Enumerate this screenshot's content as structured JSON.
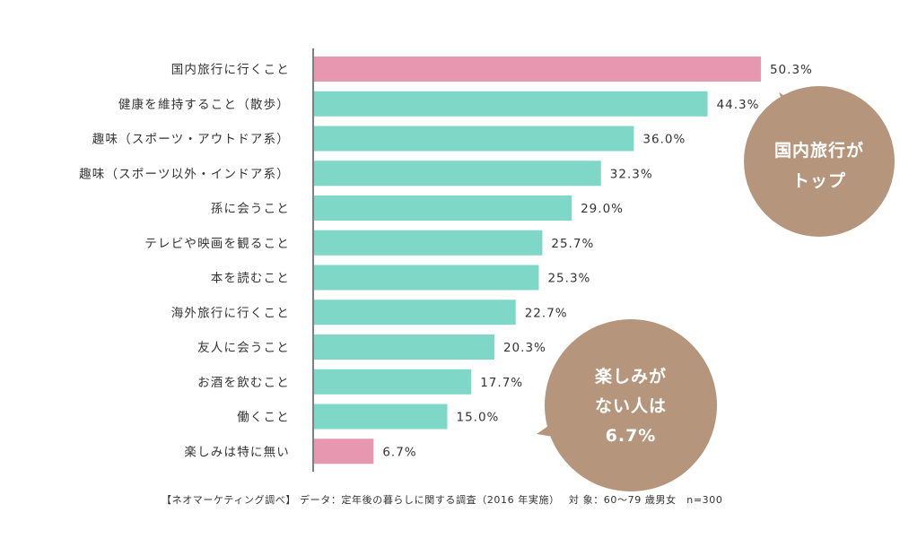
{
  "chart_data": {
    "type": "bar",
    "orientation": "horizontal",
    "categories": [
      "国内旅行に行くこと",
      "健康を維持すること（散歩）",
      "趣味（スポーツ・アウトドア系）",
      "趣味（スポーツ以外・インドア系）",
      "孫に会うこと",
      "テレビや映画を観ること",
      "本を読むこと",
      "海外旅行に行くこと",
      "友人に会うこと",
      "お酒を飲むこと",
      "働くこと",
      "楽しみは特に無い"
    ],
    "values": [
      50.3,
      44.3,
      36.0,
      32.3,
      29.0,
      25.7,
      25.3,
      22.7,
      20.3,
      17.7,
      15.0,
      6.7
    ],
    "value_labels": [
      "50.3%",
      "44.3%",
      "36.0%",
      "32.3%",
      "29.0%",
      "25.7%",
      "25.3%",
      "22.7%",
      "20.3%",
      "17.7%",
      "15.0%",
      "6.7%"
    ],
    "highlight_indices": [
      0,
      11
    ],
    "unit": "%",
    "xlim": [
      0,
      55
    ],
    "grid": false,
    "colors": {
      "default_bar": "#7fd7c8",
      "highlight_bar": "#e797b0",
      "axis": "#555555",
      "bubble": "#b5967c"
    }
  },
  "callouts": {
    "top": {
      "lines": [
        "国内旅行が",
        "トップ"
      ]
    },
    "none": {
      "lines": [
        "楽しみが",
        "ない人は",
        "6.7%"
      ]
    }
  },
  "source": "【ネオマーケティング調べ】 データ：定年後の暮らしに関する調査（2016 年実施）　 対 象：60〜79 歳男女　n=300"
}
